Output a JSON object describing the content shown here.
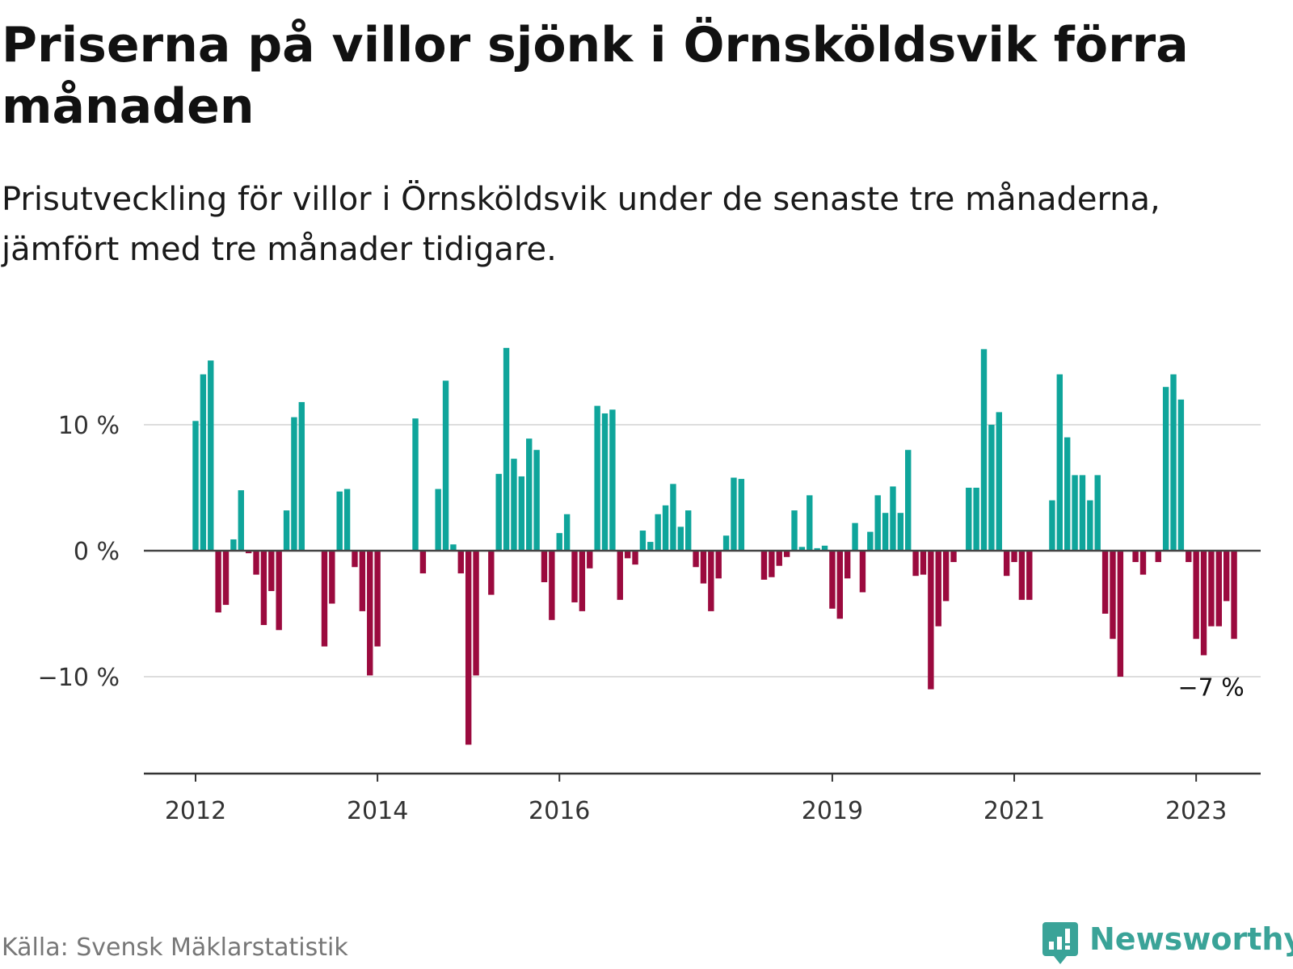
{
  "title": "Priserna på villor sjönk i Örnsköldsvik förra månaden",
  "subtitle": "Prisutveckling för villor i Örnsköldsvik under de senaste tre månaderna, jämfört med tre månader tidigare.",
  "source": "Källa: Svensk Mäklarstatistik",
  "brand": "Newsworthy",
  "colors": {
    "positive": "#0fa59b",
    "negative": "#9b0a3e",
    "zero_line": "#444444",
    "grid": "#dddddd"
  },
  "chart_data": {
    "type": "bar",
    "title": "Priserna på villor sjönk i Örnsköldsvik förra månaden",
    "subtitle": "Prisutveckling för villor i Örnsköldsvik under de senaste tre månaderna, jämfört med tre månader tidigare.",
    "x_start": "2012-01",
    "x_end": "2023-02",
    "xlabel": "",
    "ylabel": "",
    "ylim": [
      -17,
      17
    ],
    "y_ticks": [
      {
        "value": 10,
        "label": "10 %"
      },
      {
        "value": 0,
        "label": "0 %"
      },
      {
        "value": -10,
        "label": "−10 %"
      }
    ],
    "x_ticks": [
      {
        "date": "2012-01",
        "label": "2012"
      },
      {
        "date": "2014-01",
        "label": "2014"
      },
      {
        "date": "2016-01",
        "label": "2016"
      },
      {
        "date": "2019-01",
        "label": "2019"
      },
      {
        "date": "2021-01",
        "label": "2021"
      },
      {
        "date": "2023-01",
        "label": "2023"
      }
    ],
    "grid": true,
    "annotation": {
      "date": "2023-02",
      "label": "−7 %"
    },
    "values": [
      10.3,
      14.0,
      15.1,
      -4.9,
      -4.3,
      0.9,
      4.8,
      -0.2,
      -1.9,
      -5.9,
      -3.2,
      -6.3,
      3.2,
      10.6,
      11.8,
      null,
      null,
      -7.6,
      -4.2,
      4.7,
      4.9,
      -1.3,
      -4.8,
      -9.9,
      -7.6,
      null,
      null,
      null,
      null,
      10.5,
      -1.8,
      null,
      4.9,
      13.5,
      0.5,
      -1.8,
      -15.4,
      -9.9,
      null,
      -3.5,
      6.1,
      16.1,
      7.3,
      5.9,
      8.9,
      8.0,
      -2.5,
      -5.5,
      1.4,
      2.9,
      -4.1,
      -4.8,
      -1.4,
      11.5,
      10.9,
      11.2,
      -3.9,
      -0.6,
      -1.1,
      1.6,
      0.7,
      2.9,
      3.6,
      5.3,
      1.9,
      3.2,
      -1.3,
      -2.6,
      -4.8,
      -2.2,
      1.2,
      5.8,
      5.7,
      null,
      null,
      -2.3,
      -2.1,
      -1.2,
      -0.5,
      3.2,
      0.3,
      4.4,
      0.2,
      0.4,
      -4.6,
      -5.4,
      -2.2,
      2.2,
      -3.3,
      1.5,
      4.4,
      3.0,
      5.1,
      3.0,
      8.0,
      -2.0,
      -1.9,
      -11.0,
      -6.0,
      -4.0,
      -0.9,
      null,
      5.0,
      5.0,
      16.0,
      10.0,
      11.0,
      -2.0,
      -0.9,
      -3.9,
      -3.9,
      null,
      null,
      4.0,
      14.0,
      9.0,
      6.0,
      6.0,
      4.0,
      6.0,
      -5.0,
      -7.0,
      -10.0,
      null,
      -0.9,
      -1.9,
      null,
      -0.9,
      13.0,
      14.0,
      12.0,
      -0.9,
      -7.0,
      -8.3,
      -6.0,
      -6.0,
      -4.0,
      -7.0
    ]
  }
}
